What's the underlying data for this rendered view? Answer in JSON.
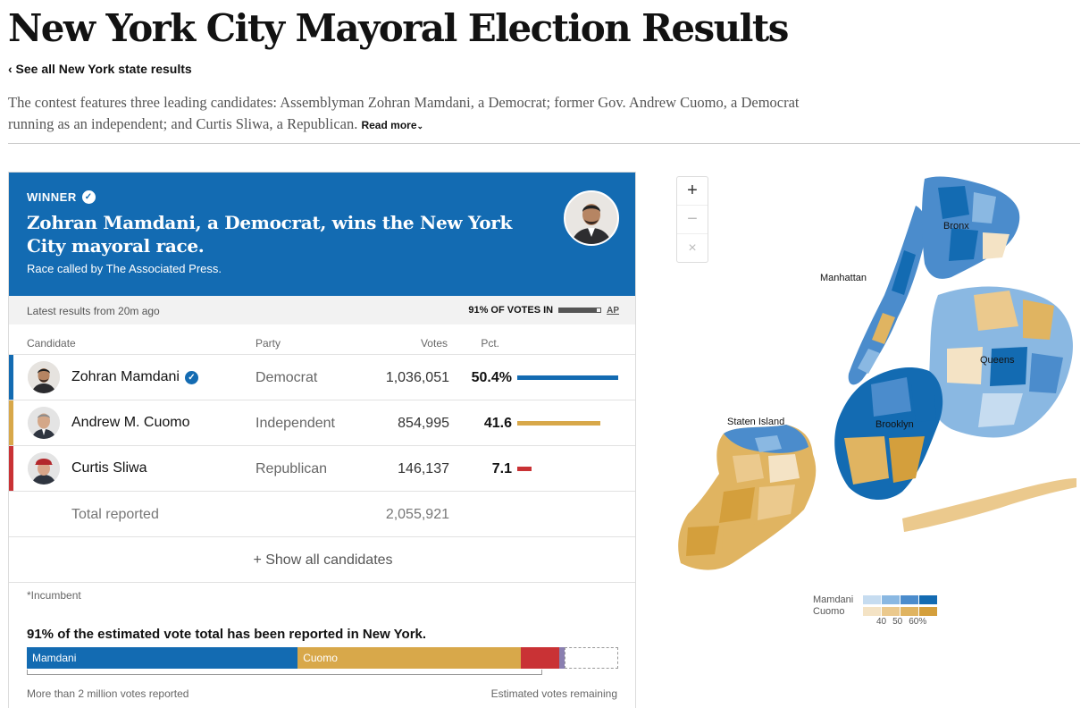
{
  "page": {
    "title": "New York City Mayoral Election Results",
    "back_link": "‹ See all New York state results",
    "intro": "The contest features three leading candidates: Assemblyman Zohran Mamdani, a Democrat; former Gov. Andrew Cuomo, a Democrat running as an independent; and Curtis Sliwa, a Republican.",
    "read_more": "Read more"
  },
  "winner": {
    "tag": "WINNER",
    "headline": "Zohran Mamdani, a Democrat, wins the New York City mayoral race.",
    "called_by": "Race called by The Associated Press."
  },
  "status": {
    "latest": "Latest results from 20m ago",
    "votes_in": "91% OF VOTES IN",
    "votes_in_fraction": 0.91,
    "source": "AP"
  },
  "table": {
    "headers": {
      "candidate": "Candidate",
      "party": "Party",
      "votes": "Votes",
      "pct": "Pct."
    },
    "rows": [
      {
        "name": "Zohran Mamdani",
        "party": "Democrat",
        "votes": "1,036,051",
        "pct": "50.4%",
        "pct_value": 50.4,
        "color": "#136bb2",
        "winner": true
      },
      {
        "name": "Andrew M. Cuomo",
        "party": "Independent",
        "votes": "854,995",
        "pct": "41.6",
        "pct_value": 41.6,
        "color": "#d8a84a",
        "winner": false
      },
      {
        "name": "Curtis Sliwa",
        "party": "Republican",
        "votes": "146,137",
        "pct": "7.1",
        "pct_value": 7.1,
        "color": "#c93235",
        "winner": false
      }
    ],
    "total_label": "Total reported",
    "total_votes": "2,055,921",
    "show_all": "+ Show all candidates",
    "incumbent_note": "*Incumbent"
  },
  "estimate": {
    "heading": "91% of the estimated vote total has been reported in New York.",
    "segments": [
      {
        "label": "Mamdani",
        "share": 45.8,
        "color": "#136bb2"
      },
      {
        "label": "Cuomo",
        "share": 37.8,
        "color": "#d8a84a"
      },
      {
        "label": "",
        "share": 6.5,
        "color": "#c93235"
      },
      {
        "label": "",
        "share": 0.9,
        "color": "#8a7fb0"
      }
    ],
    "reported_label": "More than 2 million votes reported",
    "remaining_label": "Estimated votes remaining"
  },
  "map": {
    "zoom_in": "+",
    "zoom_out": "−",
    "reset": "×",
    "labels": {
      "bronx": "Bronx",
      "manhattan": "Manhattan",
      "queens": "Queens",
      "staten_island": "Staten Island",
      "brooklyn": "Brooklyn"
    },
    "legend": {
      "mamdani": "Mamdani",
      "cuomo": "Cuomo",
      "mamdani_colors": [
        "#c6dcf0",
        "#8ab8e2",
        "#4b8ccc",
        "#136bb2"
      ],
      "cuomo_colors": [
        "#f4e3c5",
        "#ebc98d",
        "#e0b461",
        "#d49f3c"
      ],
      "ticks": [
        "40",
        "50",
        "60%"
      ]
    }
  }
}
